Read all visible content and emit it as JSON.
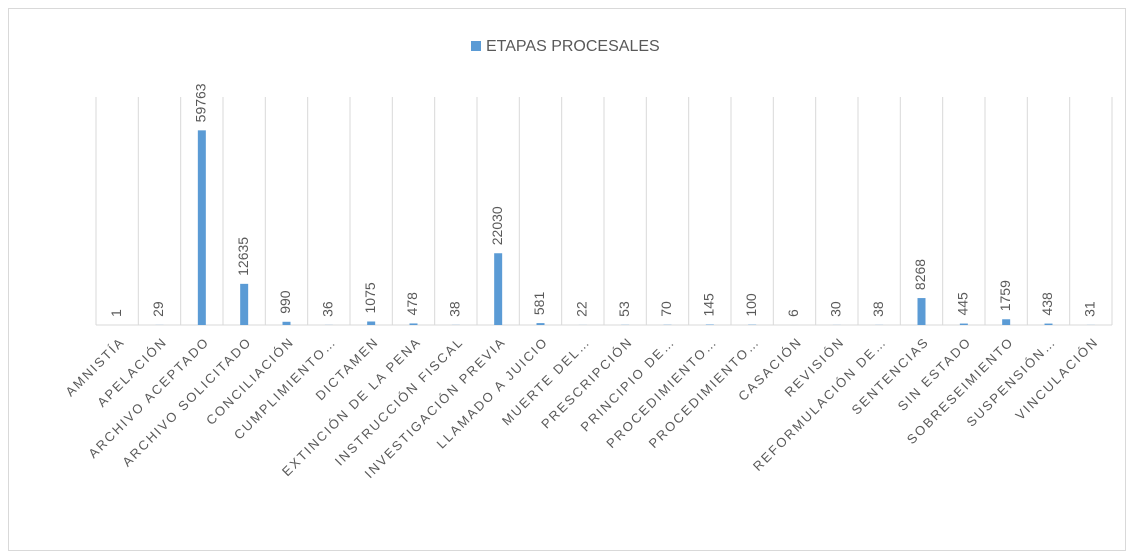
{
  "chart_data": {
    "type": "bar",
    "legend": "ETAPAS PROCESALES",
    "color": "#5b9bd5",
    "categories": [
      "AMNISTÍA",
      "APELACIÓN",
      "ARCHIVO ACEPTADO",
      "ARCHIVO SOLICITADO",
      "CONCILIACIÓN",
      "CUMPLIMIENTO…",
      "DICTAMEN",
      "EXTINCIÓN DE LA PENA",
      "INSTRUCCIÓN FISCAL",
      "INVESTIGACIÓN PREVIA",
      "LLAMADO A JUICIO",
      "MUERTE DEL…",
      "PRESCRIPCIÓN",
      "PRINCIPIO DE…",
      "PROCEDIMIENTO…",
      "PROCEDIMIENTO…",
      "CASACIÓN",
      "REVISIÓN",
      "REFORMULACIÓN DE…",
      "SENTENCIAS",
      "SIN ESTADO",
      "SOBRESEIMIENTO",
      "SUSPENSIÓN…",
      "VINCULACIÓN"
    ],
    "values": [
      1,
      29,
      59763,
      12635,
      990,
      36,
      1075,
      478,
      38,
      22030,
      581,
      22,
      53,
      70,
      145,
      100,
      6,
      30,
      38,
      8268,
      445,
      1759,
      438,
      31
    ],
    "ylim": [
      0,
      70000
    ]
  }
}
